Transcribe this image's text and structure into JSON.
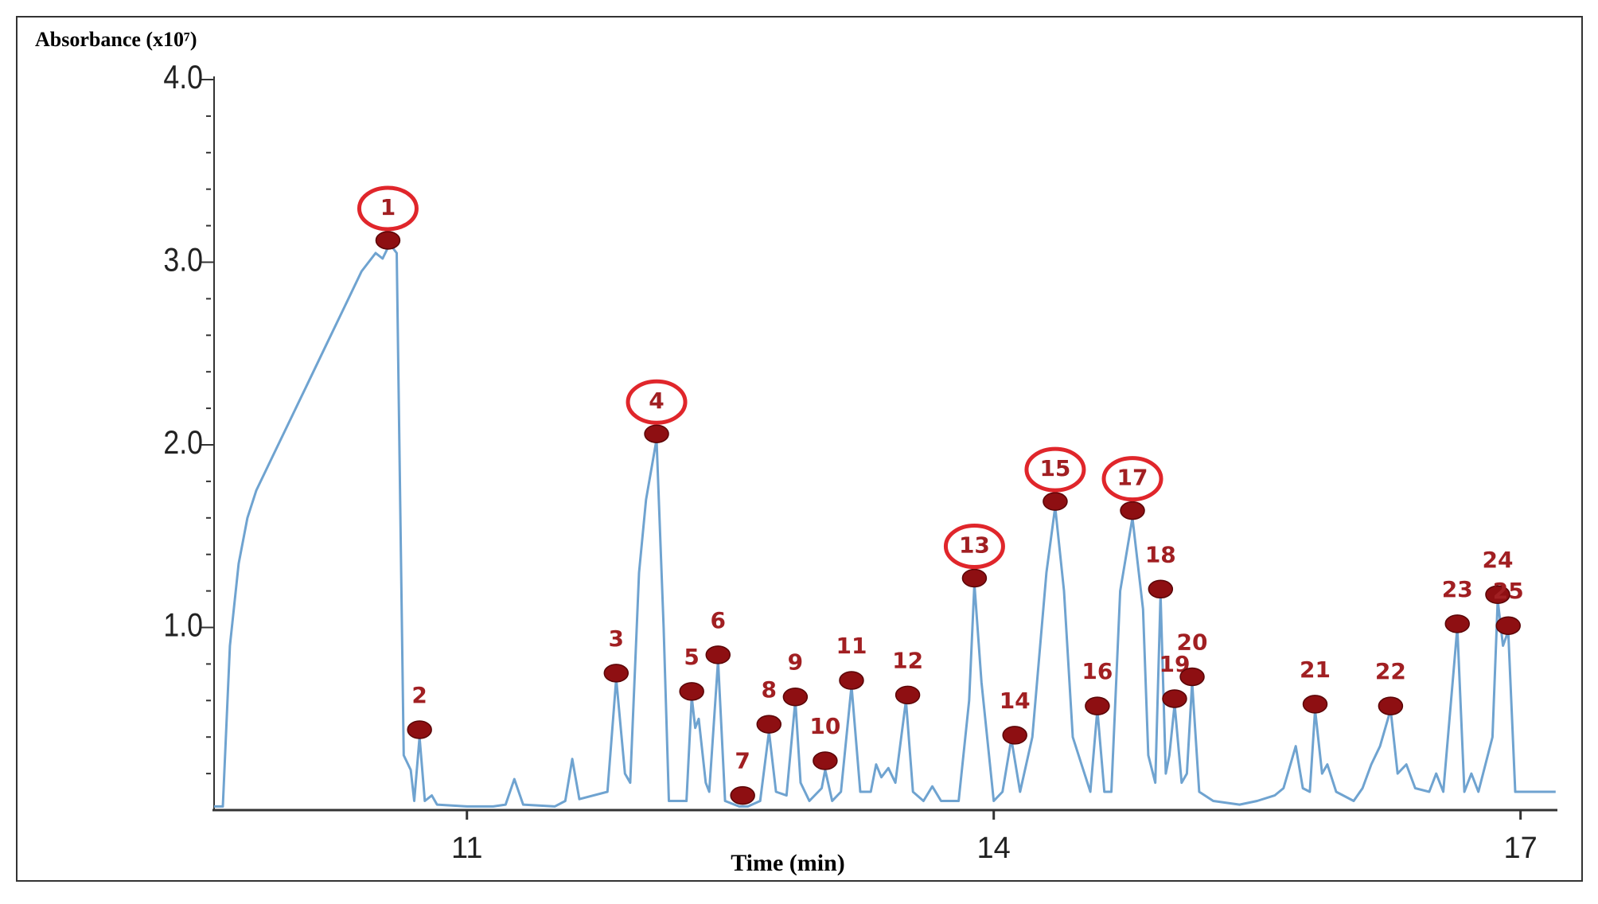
{
  "chart_data": {
    "type": "line",
    "y_axis_label": "Absorbance (x10⁷)",
    "x_axis_label": "Time (min)",
    "xlim": [
      9.56,
      17.21
    ],
    "xticks": [
      11,
      14,
      17
    ],
    "ylim": [
      0,
      4
    ],
    "yticks": [
      {
        "value": 1,
        "label": "1.0"
      },
      {
        "value": 2,
        "label": "2.0"
      },
      {
        "value": 3,
        "label": "3.0"
      },
      {
        "value": 4,
        "label": "4.0"
      }
    ],
    "yminor_ticks": [
      0.2,
      0.4,
      0.6,
      0.8,
      1.2,
      1.4,
      1.6,
      1.8,
      2.2,
      2.4,
      2.6,
      2.8,
      3.2,
      3.4,
      3.6,
      3.8
    ],
    "series": [
      {
        "color": "#6fa3d0",
        "x": [
          9.56,
          9.61,
          9.65,
          9.7,
          9.75,
          9.8,
          9.9,
          10.0,
          10.1,
          10.2,
          10.3,
          10.4,
          10.48,
          10.52,
          10.56,
          10.6,
          10.64,
          10.68,
          10.7,
          10.73,
          10.76,
          10.8,
          10.83,
          11.0,
          11.15,
          11.22,
          11.27,
          11.32,
          11.5,
          11.56,
          11.6,
          11.64,
          11.8,
          11.85,
          11.9,
          11.93,
          11.98,
          12.02,
          12.08,
          12.12,
          12.15,
          12.25,
          12.28,
          12.3,
          12.32,
          12.36,
          12.38,
          12.43,
          12.47,
          12.55,
          12.6,
          12.67,
          12.72,
          12.76,
          12.82,
          12.87,
          12.9,
          12.95,
          13.02,
          13.04,
          13.08,
          13.13,
          13.19,
          13.24,
          13.3,
          13.33,
          13.36,
          13.4,
          13.44,
          13.5,
          13.54,
          13.6,
          13.65,
          13.7,
          13.8,
          13.86,
          13.89,
          13.93,
          14.0,
          14.05,
          14.1,
          14.15,
          14.22,
          14.3,
          14.35,
          14.4,
          14.45,
          14.5,
          14.55,
          14.59,
          14.63,
          14.67,
          14.72,
          14.79,
          14.85,
          14.88,
          14.92,
          14.95,
          14.98,
          15.0,
          15.03,
          15.07,
          15.1,
          15.13,
          15.17,
          15.25,
          15.4,
          15.5,
          15.6,
          15.65,
          15.72,
          15.76,
          15.8,
          15.83,
          15.87,
          15.9,
          15.95,
          16.05,
          16.1,
          16.15,
          16.2,
          16.26,
          16.3,
          16.35,
          16.4,
          16.48,
          16.52,
          16.56,
          16.64,
          16.68,
          16.72,
          16.76,
          16.84,
          16.87,
          16.9,
          16.93,
          16.97,
          17.05,
          17.2
        ],
        "values": [
          0.02,
          0.02,
          0.9,
          1.35,
          1.6,
          1.75,
          1.95,
          2.15,
          2.35,
          2.55,
          2.75,
          2.95,
          3.05,
          3.02,
          3.1,
          3.05,
          0.3,
          0.22,
          0.05,
          0.4,
          0.05,
          0.08,
          0.03,
          0.02,
          0.02,
          0.03,
          0.17,
          0.03,
          0.02,
          0.05,
          0.28,
          0.06,
          0.1,
          0.72,
          0.2,
          0.15,
          1.3,
          1.7,
          2.03,
          1.0,
          0.05,
          0.05,
          0.62,
          0.45,
          0.5,
          0.15,
          0.1,
          0.82,
          0.05,
          0.02,
          0.02,
          0.05,
          0.43,
          0.1,
          0.08,
          0.6,
          0.15,
          0.05,
          0.12,
          0.22,
          0.05,
          0.1,
          0.68,
          0.1,
          0.1,
          0.25,
          0.18,
          0.23,
          0.15,
          0.6,
          0.1,
          0.05,
          0.13,
          0.05,
          0.05,
          0.6,
          1.24,
          0.7,
          0.05,
          0.1,
          0.39,
          0.1,
          0.4,
          1.3,
          1.66,
          1.2,
          0.4,
          0.25,
          0.1,
          0.55,
          0.1,
          0.1,
          1.2,
          1.6,
          1.1,
          0.3,
          0.15,
          1.18,
          0.2,
          0.3,
          0.58,
          0.15,
          0.2,
          0.7,
          0.1,
          0.05,
          0.03,
          0.05,
          0.08,
          0.12,
          0.35,
          0.12,
          0.1,
          0.55,
          0.2,
          0.25,
          0.1,
          0.05,
          0.12,
          0.25,
          0.35,
          0.55,
          0.2,
          0.25,
          0.12,
          0.1,
          0.2,
          0.1,
          1.0,
          0.1,
          0.2,
          0.1,
          0.4,
          1.15,
          0.9,
          0.98,
          0.1,
          0.1,
          0.1
        ]
      }
    ],
    "peaks": [
      {
        "label": "1",
        "x": 10.55,
        "value": 3.12,
        "highlighted": true
      },
      {
        "label": "2",
        "x": 10.73,
        "value": 0.44,
        "highlighted": false
      },
      {
        "label": "3",
        "x": 11.85,
        "value": 0.75,
        "highlighted": false
      },
      {
        "label": "4",
        "x": 12.08,
        "value": 2.06,
        "highlighted": true
      },
      {
        "label": "5",
        "x": 12.28,
        "value": 0.65,
        "highlighted": false
      },
      {
        "label": "6",
        "x": 12.43,
        "value": 0.85,
        "highlighted": false
      },
      {
        "label": "7",
        "x": 12.57,
        "value": 0.08,
        "highlighted": false
      },
      {
        "label": "8",
        "x": 12.72,
        "value": 0.47,
        "highlighted": false
      },
      {
        "label": "9",
        "x": 12.87,
        "value": 0.62,
        "highlighted": false
      },
      {
        "label": "10",
        "x": 13.04,
        "value": 0.27,
        "highlighted": false
      },
      {
        "label": "11",
        "x": 13.19,
        "value": 0.71,
        "highlighted": false
      },
      {
        "label": "12",
        "x": 13.51,
        "value": 0.63,
        "highlighted": false
      },
      {
        "label": "13",
        "x": 13.89,
        "value": 1.27,
        "highlighted": true
      },
      {
        "label": "14",
        "x": 14.12,
        "value": 0.41,
        "highlighted": false
      },
      {
        "label": "15",
        "x": 14.35,
        "value": 1.69,
        "highlighted": true
      },
      {
        "label": "16",
        "x": 14.59,
        "value": 0.57,
        "highlighted": false
      },
      {
        "label": "17",
        "x": 14.79,
        "value": 1.64,
        "highlighted": true
      },
      {
        "label": "18",
        "x": 14.95,
        "value": 1.21,
        "highlighted": false
      },
      {
        "label": "19",
        "x": 15.03,
        "value": 0.61,
        "highlighted": false
      },
      {
        "label": "20",
        "x": 15.13,
        "value": 0.73,
        "highlighted": false
      },
      {
        "label": "21",
        "x": 15.83,
        "value": 0.58,
        "highlighted": false
      },
      {
        "label": "22",
        "x": 16.26,
        "value": 0.57,
        "highlighted": false
      },
      {
        "label": "23",
        "x": 16.64,
        "value": 1.02,
        "highlighted": false
      },
      {
        "label": "24",
        "x": 16.87,
        "value": 1.18,
        "highlighted": false
      },
      {
        "label": "25",
        "x": 16.93,
        "value": 1.01,
        "highlighted": false
      }
    ],
    "peak_color": "#8e0f12",
    "highlight_color": "#e0262b"
  }
}
